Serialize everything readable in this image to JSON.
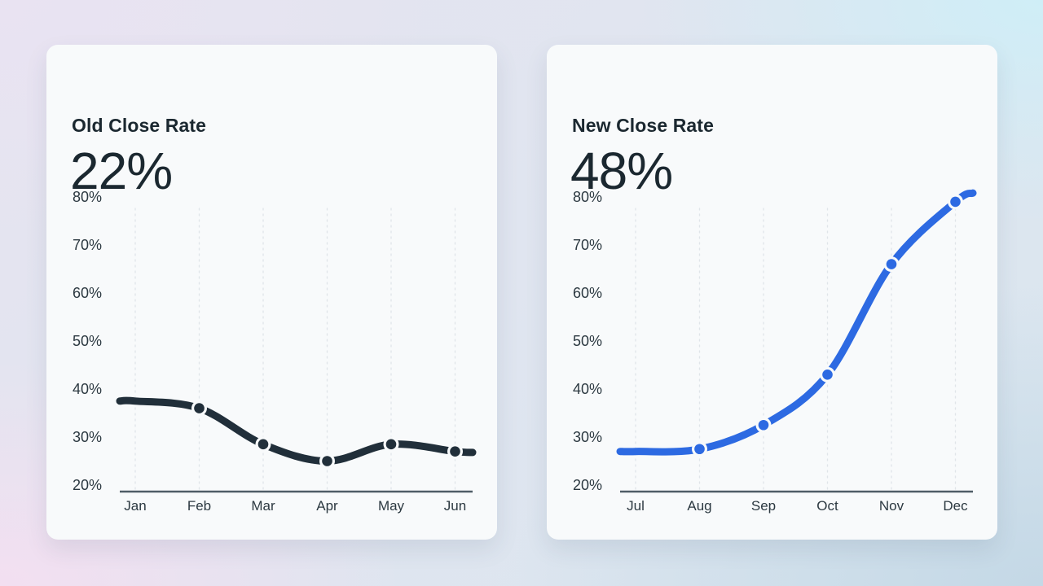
{
  "page": {
    "background": {
      "corner_colors": {
        "top_left": "#e9e3f2",
        "top_right": "#cfeef7",
        "bottom_left": "#f3dff1",
        "bottom_right": "#c4d8e6"
      }
    }
  },
  "colors": {
    "card_bg": "#f8fafb",
    "text_dark": "#1b2830",
    "axis_label": "#2b3840",
    "baseline": "#4f5d66",
    "gridline": "#e0e5e9",
    "old_line": "#212f3a",
    "new_line": "#2d6ae2"
  },
  "cards": [
    {
      "title": "Old Close Rate",
      "value": "22%"
    },
    {
      "title": "New Close Rate",
      "value": "48%"
    }
  ],
  "chart_data": [
    {
      "type": "line",
      "title": "Old Close Rate",
      "headline_value": "22%",
      "categories": [
        "Jan",
        "Feb",
        "Mar",
        "Apr",
        "May",
        "Jun"
      ],
      "values": [
        37.5,
        36,
        28.5,
        25,
        28.5,
        27
      ],
      "ylim": [
        20,
        80
      ],
      "y_ticks": [
        20,
        30,
        40,
        50,
        60,
        70,
        80
      ],
      "y_tick_suffix": "%",
      "xlabel": "",
      "ylabel": "",
      "legend": "none",
      "grid": "vertical-dashed",
      "line_color": "#212f3a",
      "markers": "dots-from-second-point"
    },
    {
      "type": "line",
      "title": "New Close Rate",
      "headline_value": "48%",
      "categories": [
        "Jul",
        "Aug",
        "Sep",
        "Oct",
        "Nov",
        "Dec"
      ],
      "values": [
        27,
        27.5,
        32.5,
        43,
        66,
        79
      ],
      "ylim": [
        20,
        80
      ],
      "y_ticks": [
        20,
        30,
        40,
        50,
        60,
        70,
        80
      ],
      "y_tick_suffix": "%",
      "xlabel": "",
      "ylabel": "",
      "legend": "none",
      "grid": "vertical-dashed",
      "line_color": "#2d6ae2",
      "markers": "dots-from-second-point"
    }
  ]
}
